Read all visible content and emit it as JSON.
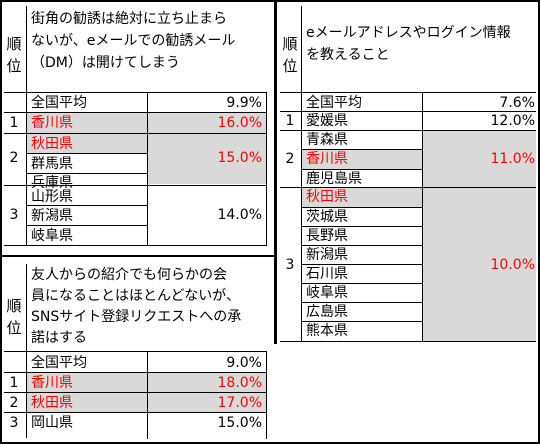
{
  "colors": {
    "highlight_text": "#ff0000",
    "highlight_bg": "#d9d9d9"
  },
  "rank_header": [
    "順",
    "位"
  ],
  "t1": {
    "title": [
      "街角の勧誘は絶対に立ち止まら",
      "ないが、eメールでの勧誘メール",
      "（DM）は開けてしまう"
    ],
    "avg_label": "全国平均",
    "avg_value": "9.9%",
    "rows": [
      {
        "rank": "1",
        "names": [
          "香川県"
        ],
        "value": "16.0%"
      },
      {
        "rank": "2",
        "names": [
          "秋田県",
          "群馬県",
          "兵庫県"
        ],
        "value": "15.0%"
      },
      {
        "rank": "3",
        "names": [
          "山形県",
          "新潟県",
          "岐阜県"
        ],
        "value": "14.0%"
      }
    ]
  },
  "t2": {
    "title": [
      "eメールアドレスやログイン情報",
      "を教えること"
    ],
    "avg_label": "全国平均",
    "avg_value": "7.6%",
    "rows": [
      {
        "rank": "1",
        "names": [
          "愛媛県"
        ],
        "value": "12.0%"
      },
      {
        "rank": "2",
        "names": [
          "青森県",
          "香川県",
          "鹿児島県"
        ],
        "value": "11.0%"
      },
      {
        "rank": "3",
        "names": [
          "秋田県",
          "茨城県",
          "長野県",
          "新潟県",
          "石川県",
          "岐阜県",
          "広島県",
          "熊本県"
        ],
        "value": "10.0%"
      }
    ]
  },
  "t3": {
    "title": [
      "友人からの紹介でも何らかの会",
      "員になることはほとんどないが、",
      "SNSサイト登録リクエストへの承",
      "諾はする"
    ],
    "avg_label": "全国平均",
    "avg_value": "9.0%",
    "rows": [
      {
        "rank": "1",
        "names": [
          "香川県"
        ],
        "value": "18.0%"
      },
      {
        "rank": "2",
        "names": [
          "秋田県"
        ],
        "value": "17.0%"
      },
      {
        "rank": "3",
        "names": [
          "岡山県"
        ],
        "value": "15.0%"
      }
    ]
  }
}
